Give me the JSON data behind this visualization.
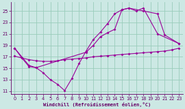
{
  "bg_color": "#cce8e4",
  "line_color": "#990099",
  "grid_color": "#99ccbb",
  "xlabel": "Windchill (Refroidissement éolien,°C)",
  "xlabel_color": "#660066",
  "tick_color": "#660066",
  "xlim": [
    -0.5,
    23.5
  ],
  "ylim": [
    10.5,
    26.5
  ],
  "yticks": [
    11,
    13,
    15,
    17,
    19,
    21,
    23,
    25
  ],
  "xticks": [
    0,
    1,
    2,
    3,
    4,
    5,
    6,
    7,
    8,
    9,
    10,
    11,
    12,
    13,
    14,
    15,
    16,
    17,
    18,
    19,
    20,
    21,
    22,
    23
  ],
  "line1_x": [
    0,
    1,
    2,
    3,
    4,
    5,
    6,
    7,
    8,
    9,
    10,
    11,
    12,
    13,
    14,
    15,
    16,
    17,
    18,
    20,
    23
  ],
  "line1_y": [
    18.5,
    16.8,
    15.3,
    15.1,
    14.2,
    13.0,
    12.2,
    11.1,
    13.2,
    15.8,
    18.0,
    20.0,
    21.3,
    22.8,
    24.5,
    25.2,
    25.5,
    25.0,
    25.5,
    21.0,
    19.3
  ],
  "line2_x": [
    0,
    2,
    3,
    10,
    11,
    12,
    13,
    14,
    15,
    16,
    18,
    20,
    21,
    23
  ],
  "line2_y": [
    18.5,
    15.5,
    15.1,
    17.8,
    19.0,
    20.5,
    21.2,
    21.8,
    25.2,
    25.5,
    25.0,
    24.5,
    20.8,
    19.3
  ],
  "line3_x": [
    0,
    1,
    2,
    3,
    4,
    5,
    6,
    7,
    8,
    9,
    10,
    11,
    12,
    13,
    14,
    15,
    16,
    17,
    18,
    19,
    20,
    21,
    22,
    23
  ],
  "line3_y": [
    17.1,
    16.8,
    16.5,
    16.3,
    16.2,
    16.2,
    16.3,
    16.5,
    16.6,
    16.7,
    16.8,
    17.0,
    17.1,
    17.2,
    17.3,
    17.4,
    17.5,
    17.6,
    17.7,
    17.8,
    17.9,
    18.0,
    18.2,
    18.5
  ]
}
